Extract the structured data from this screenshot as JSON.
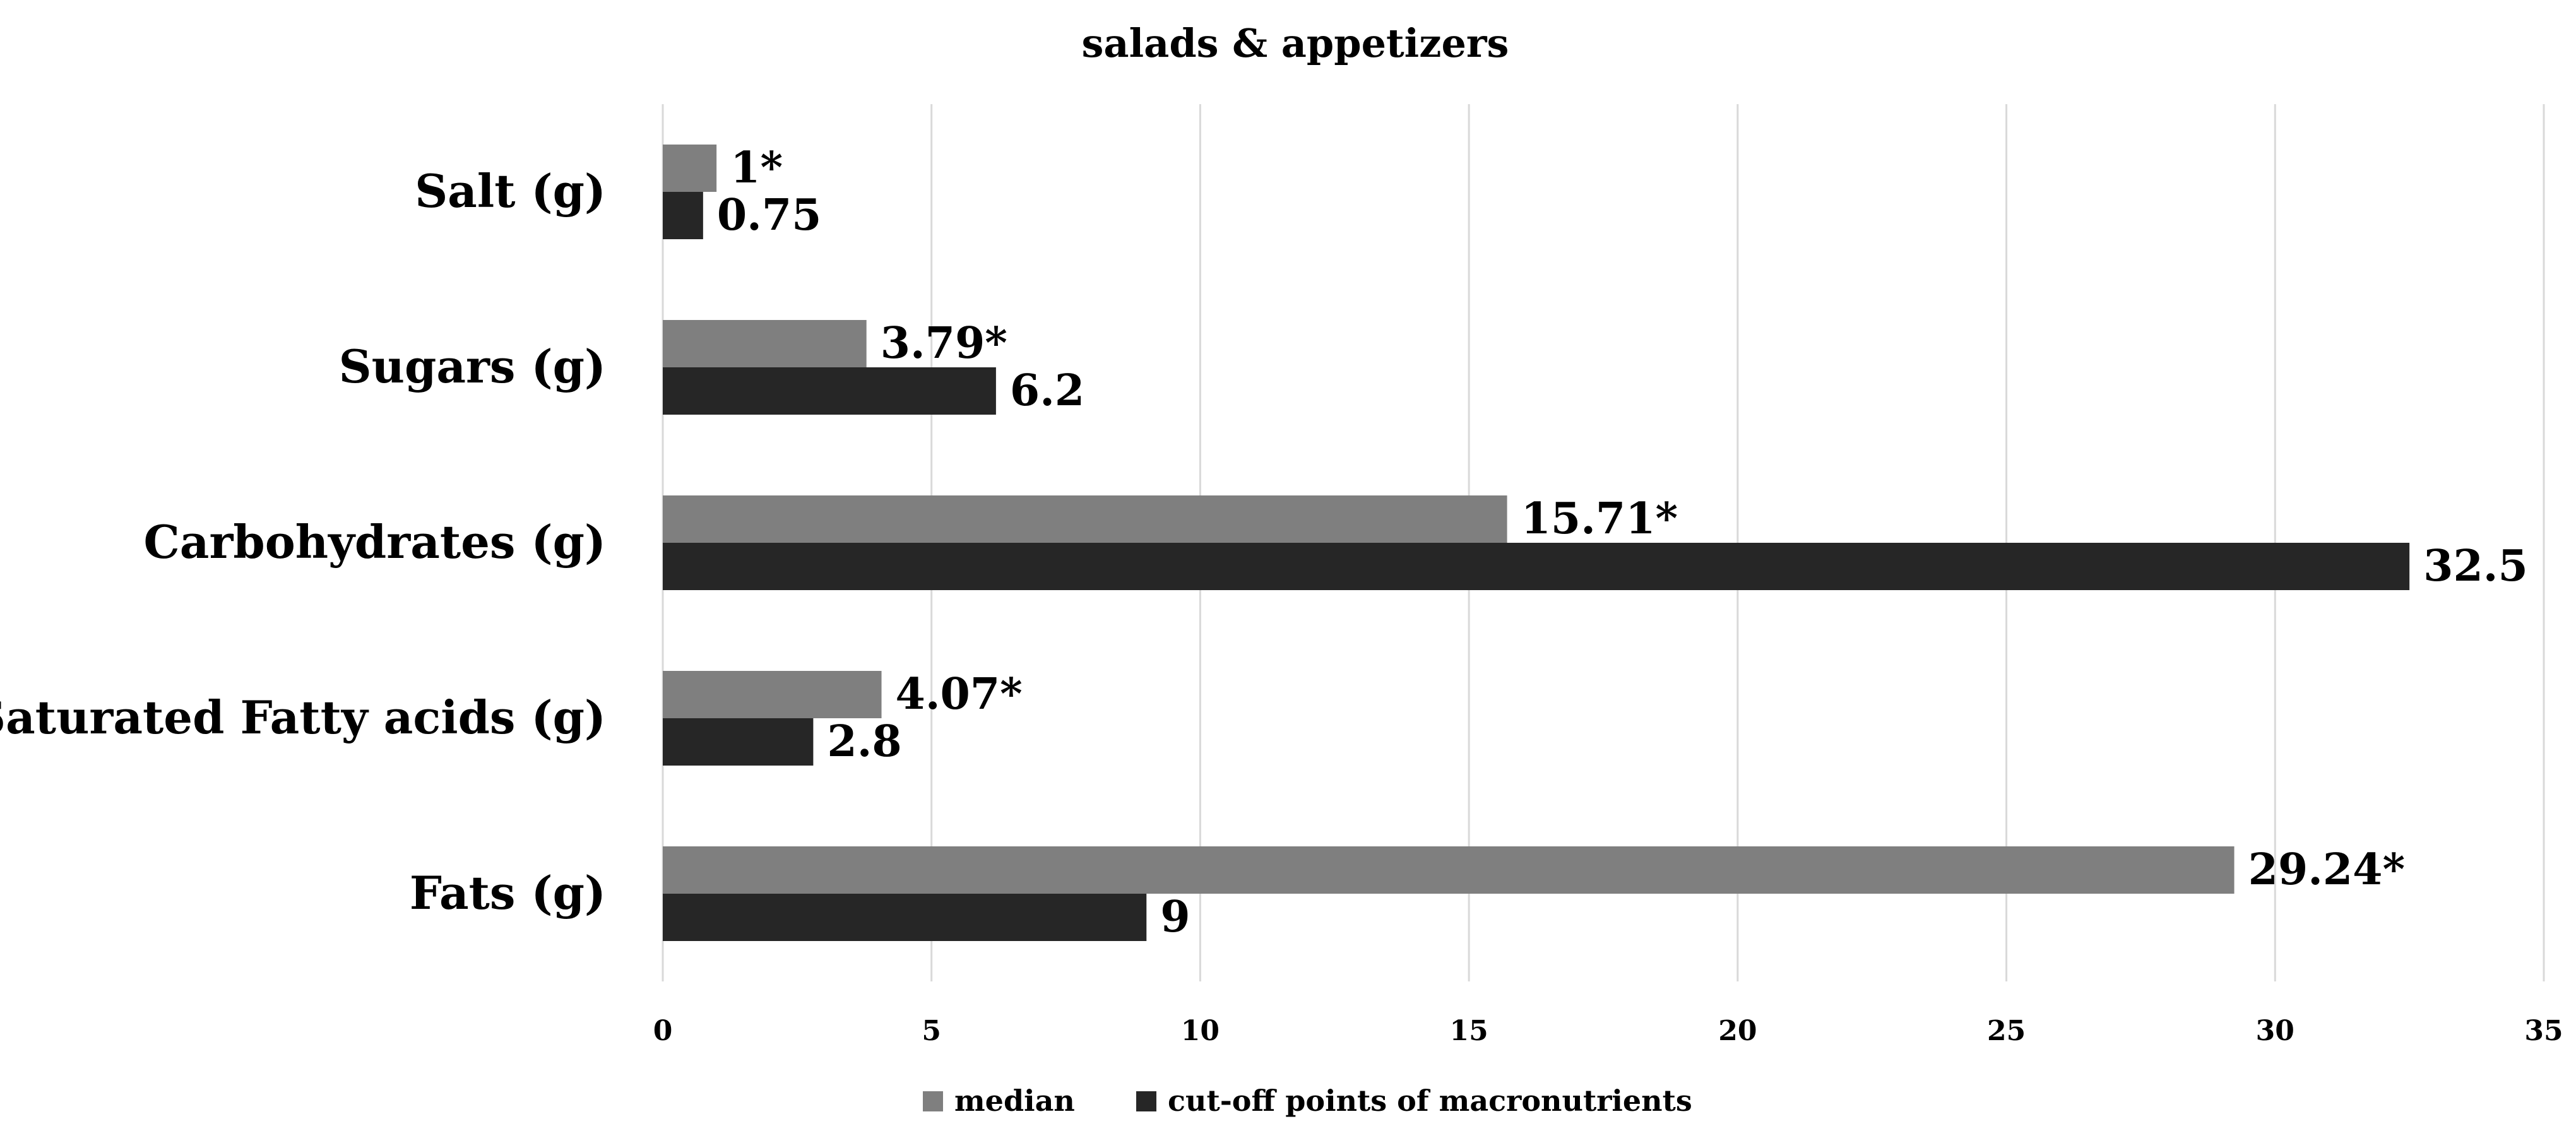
{
  "chart_data": {
    "type": "bar",
    "orientation": "horizontal",
    "title": "salads & appetizers",
    "xlabel": "",
    "ylabel": "",
    "categories": [
      "Salt (g)",
      "Sugars (g)",
      "Carbohydrates (g)",
      "Saturated Fatty acids (g)",
      "Fats (g)"
    ],
    "series": [
      {
        "name": "median",
        "color": "#7f7f7f",
        "values": [
          1,
          3.79,
          15.71,
          4.07,
          29.24
        ],
        "labels": [
          "1*",
          "3.79*",
          "15.71*",
          "4.07*",
          "29.24*"
        ]
      },
      {
        "name": "cut-off points of macronutrients",
        "color": "#262626",
        "values": [
          0.75,
          6.2,
          32.5,
          2.8,
          9
        ],
        "labels": [
          "0.75",
          "6.2",
          "32.5",
          "2.8",
          "9"
        ]
      }
    ],
    "xlim": [
      0,
      35
    ],
    "xticks": [
      "0",
      "5",
      "10",
      "15",
      "20",
      "25",
      "30",
      "35"
    ],
    "grid": "vertical",
    "legend": "bottom"
  }
}
